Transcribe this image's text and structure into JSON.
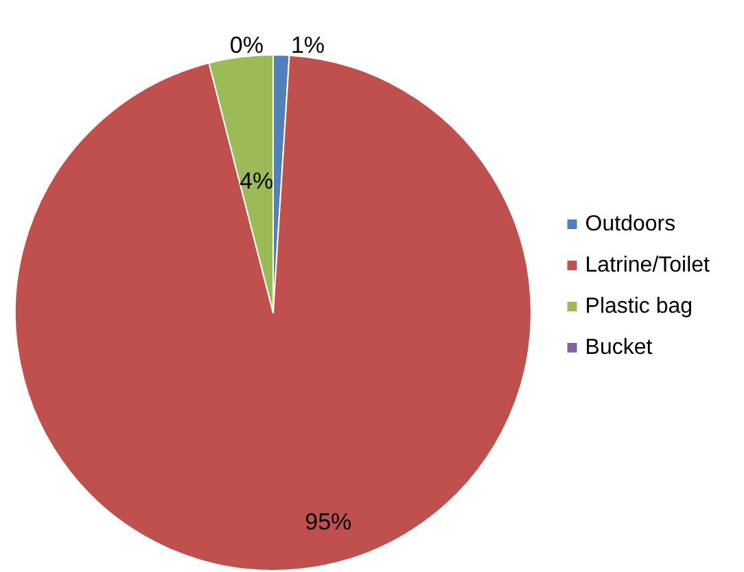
{
  "chart_data": {
    "type": "pie",
    "categories": [
      "Outdoors",
      "Latrine/Toilet",
      "Plastic bag",
      "Bucket"
    ],
    "values": [
      1,
      95,
      4,
      0
    ],
    "colors": [
      "#4f81bd",
      "#c0504d",
      "#9bbb59",
      "#8064a2"
    ],
    "value_labels": [
      "1%",
      "95%",
      "4%",
      "0%"
    ],
    "legend": "right"
  }
}
